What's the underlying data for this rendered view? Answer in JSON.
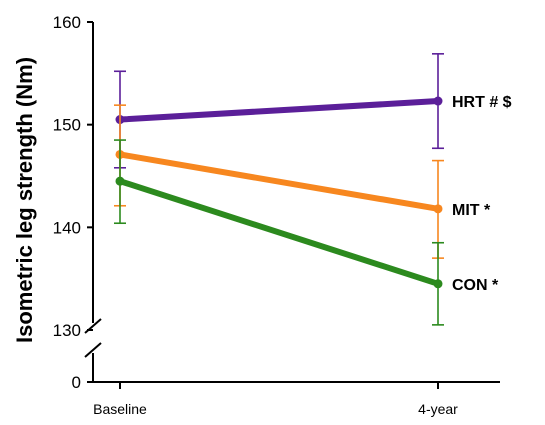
{
  "chart_data": {
    "type": "line",
    "title": "",
    "xlabel": "",
    "ylabel": "Isometric leg strength (Nm)",
    "categories": [
      "Baseline",
      "4-year"
    ],
    "y_ticks": [
      "160",
      "150",
      "140",
      "130",
      "0"
    ],
    "ylim_upper_segment": [
      130,
      160
    ],
    "axis_break": true,
    "grid": false,
    "series": [
      {
        "name": "HRT # $",
        "color": "#5b1f99",
        "values": [
          150.5,
          152.3
        ],
        "error": [
          [
            4.7,
            4.6
          ],
          [
            4.7,
            4.6
          ]
        ]
      },
      {
        "name": "MIT *",
        "color": "#f7871f",
        "values": [
          147.1,
          141.8
        ],
        "error": [
          [
            5.0,
            4.8
          ],
          [
            4.8,
            4.7
          ]
        ]
      },
      {
        "name": "CON *",
        "color": "#2c8a1e",
        "values": [
          144.5,
          134.5
        ],
        "error": [
          [
            4.1,
            4.0
          ],
          [
            4.0,
            4.0
          ]
        ]
      }
    ]
  }
}
